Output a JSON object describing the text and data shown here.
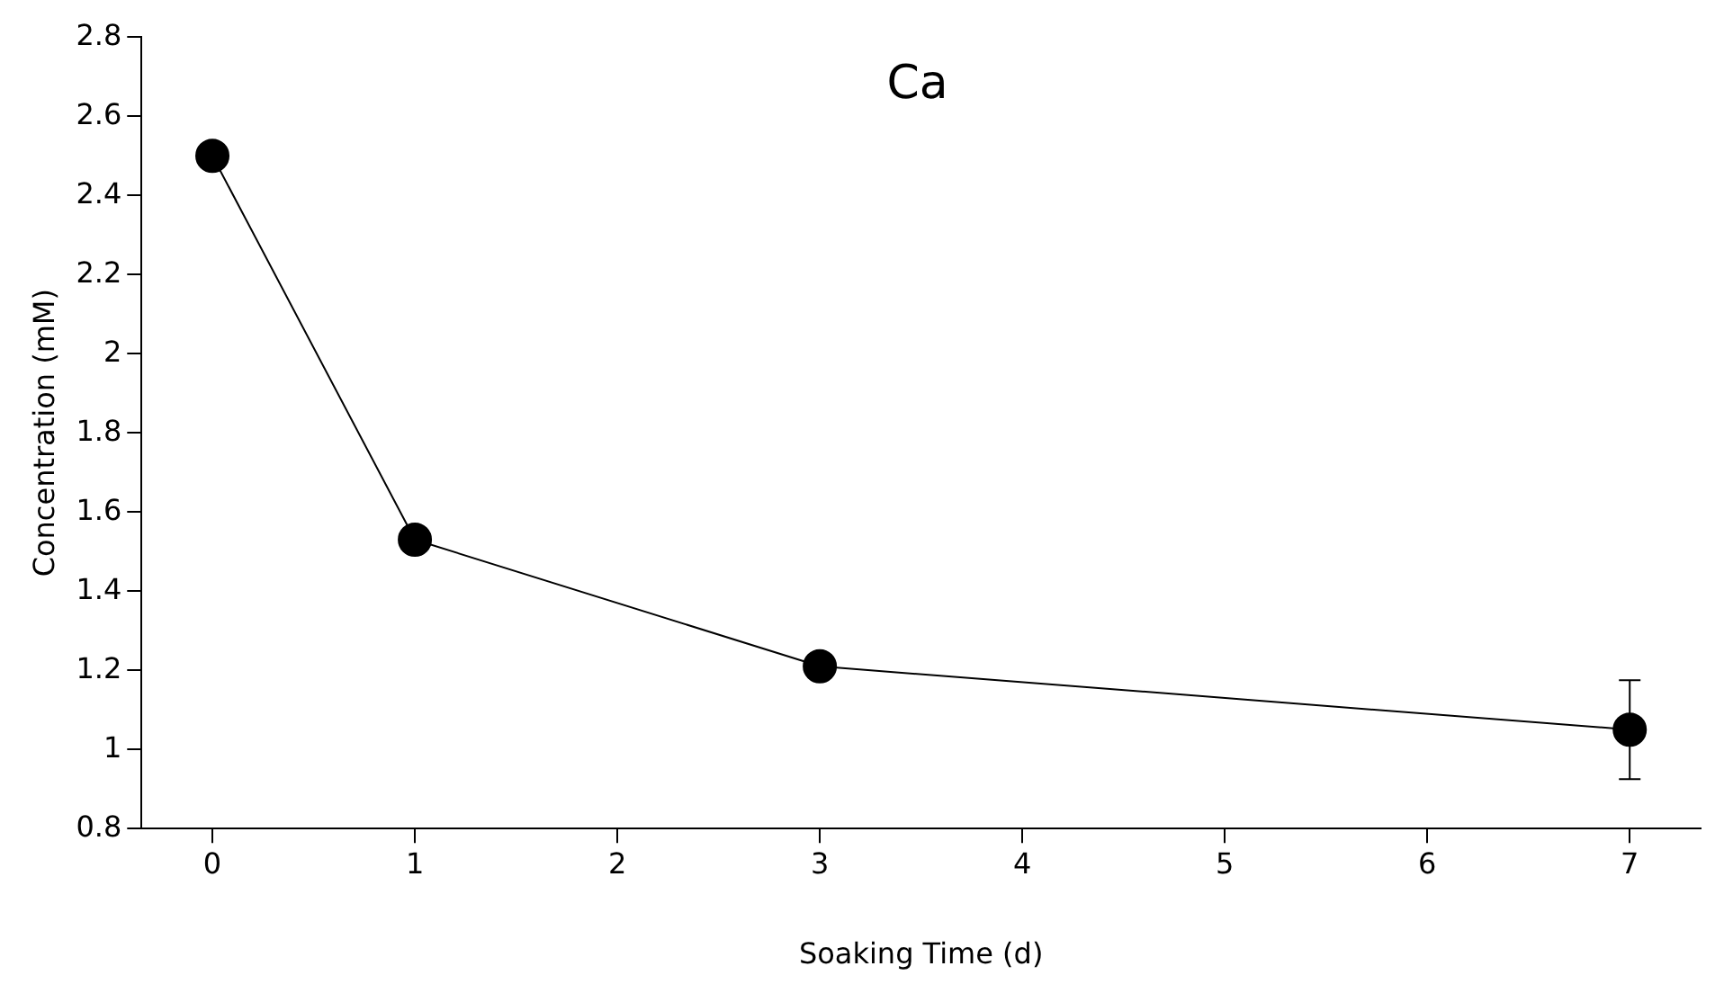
{
  "chart_data": {
    "type": "line",
    "title": "Ca",
    "xlabel": "Soaking Time (d)",
    "ylabel": "Concentration (mM)",
    "x": [
      0,
      1,
      3,
      7
    ],
    "series": [
      {
        "color": "#000000",
        "values": [
          2.5,
          1.53,
          1.21,
          1.05
        ],
        "errors": [
          null,
          null,
          null,
          0.125
        ]
      }
    ],
    "xlim": [
      -0.35,
      7.35
    ],
    "xticks": [
      0,
      1,
      2,
      3,
      4,
      5,
      6,
      7
    ],
    "ylim": [
      0.8,
      2.8
    ],
    "yticks": [
      0.8,
      1,
      1.2,
      1.4,
      1.6,
      1.8,
      2,
      2.2,
      2.4,
      2.6,
      2.8
    ],
    "grid": false,
    "legend": false,
    "marker": "circle",
    "line_style": "solid"
  }
}
